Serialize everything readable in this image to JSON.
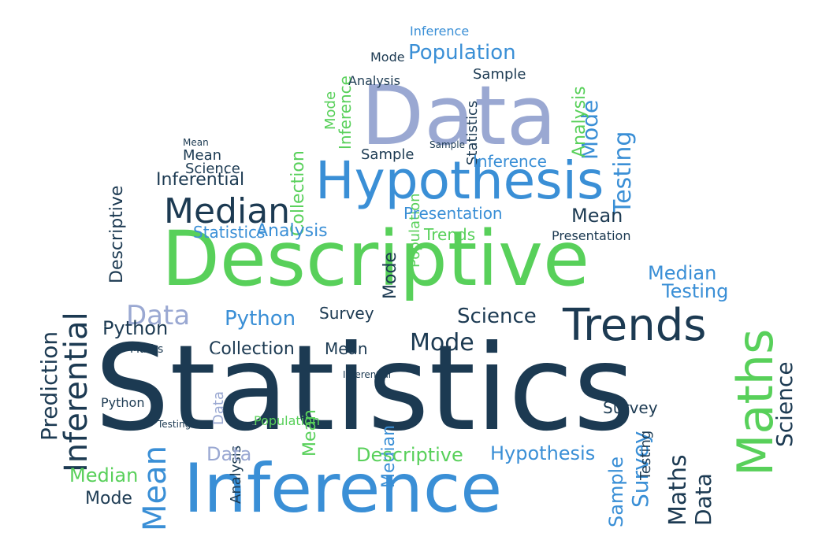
{
  "colors": {
    "navy": "#1c3a52",
    "blue": "#3a8fd6",
    "green": "#58d05a",
    "lavender": "#9aa8d2",
    "light_blue": "#7fb2de"
  },
  "words": [
    "Statistics",
    "Descriptive",
    "Inference",
    "Data",
    "Hypothesis",
    "Trends",
    "Maths",
    "Median",
    "Inferential",
    "Prediction",
    "Mean",
    "Population",
    "Python",
    "Science",
    "Mode",
    "Survey",
    "Testing",
    "Collection",
    "Analysis",
    "Sample",
    "Presentation",
    "Statistics",
    "Data",
    "Mode",
    "Median",
    "Mean",
    "Python",
    "Testing",
    "Inference",
    "Hypothesis",
    "Descriptive",
    "Sample",
    "Maths",
    "Mode",
    "Collection",
    "Analysis",
    "Mean",
    "Population",
    "Trends",
    "Science",
    "Mode",
    "Mean",
    "Inferential",
    "Statistics",
    "Science",
    "Survey",
    "Testing",
    "Median",
    "Presentation",
    "Maths",
    "Data",
    "Mean",
    "Data",
    "Trends",
    "Hypothesis",
    "Sample",
    "Mode",
    "Analysis",
    "Survey",
    "Statistics",
    "Prediction",
    "Science",
    "Testing",
    "Inference",
    "Presentation",
    "Median",
    "Mean",
    "Testing",
    "Python",
    "Mode",
    "Inferential",
    "Collection",
    "Population",
    "Analysis",
    "Sample",
    "Survey",
    "Maths",
    "Descriptive",
    "Trends",
    "Data",
    "Inference",
    "Prediction",
    "Mode",
    "Sample",
    "Analysis",
    "Inferential",
    "Population",
    "Collection",
    "Science",
    "Statistics",
    "Maths",
    "Survey",
    "Testing"
  ]
}
